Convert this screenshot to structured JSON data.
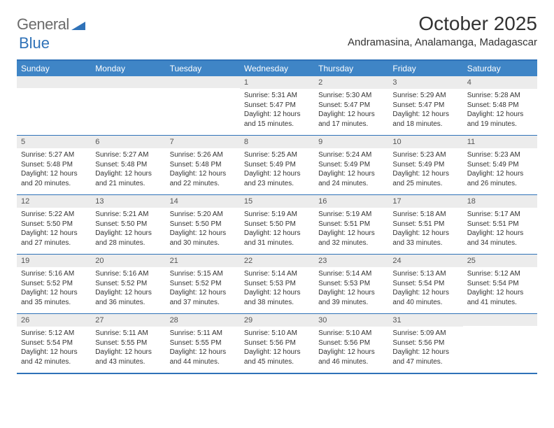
{
  "logo": {
    "text1": "General",
    "text2": "Blue"
  },
  "title": "October 2025",
  "location": "Andramasina, Analamanga, Madagascar",
  "colors": {
    "header_bg": "#3f85c6",
    "border": "#2f72b8",
    "daynum_bg": "#ececec",
    "text": "#333333",
    "header_text": "#ffffff"
  },
  "day_names": [
    "Sunday",
    "Monday",
    "Tuesday",
    "Wednesday",
    "Thursday",
    "Friday",
    "Saturday"
  ],
  "weeks": [
    [
      null,
      null,
      null,
      {
        "n": "1",
        "sr": "5:31 AM",
        "ss": "5:47 PM",
        "dl": "12 hours and 15 minutes."
      },
      {
        "n": "2",
        "sr": "5:30 AM",
        "ss": "5:47 PM",
        "dl": "12 hours and 17 minutes."
      },
      {
        "n": "3",
        "sr": "5:29 AM",
        "ss": "5:47 PM",
        "dl": "12 hours and 18 minutes."
      },
      {
        "n": "4",
        "sr": "5:28 AM",
        "ss": "5:48 PM",
        "dl": "12 hours and 19 minutes."
      }
    ],
    [
      {
        "n": "5",
        "sr": "5:27 AM",
        "ss": "5:48 PM",
        "dl": "12 hours and 20 minutes."
      },
      {
        "n": "6",
        "sr": "5:27 AM",
        "ss": "5:48 PM",
        "dl": "12 hours and 21 minutes."
      },
      {
        "n": "7",
        "sr": "5:26 AM",
        "ss": "5:48 PM",
        "dl": "12 hours and 22 minutes."
      },
      {
        "n": "8",
        "sr": "5:25 AM",
        "ss": "5:49 PM",
        "dl": "12 hours and 23 minutes."
      },
      {
        "n": "9",
        "sr": "5:24 AM",
        "ss": "5:49 PM",
        "dl": "12 hours and 24 minutes."
      },
      {
        "n": "10",
        "sr": "5:23 AM",
        "ss": "5:49 PM",
        "dl": "12 hours and 25 minutes."
      },
      {
        "n": "11",
        "sr": "5:23 AM",
        "ss": "5:49 PM",
        "dl": "12 hours and 26 minutes."
      }
    ],
    [
      {
        "n": "12",
        "sr": "5:22 AM",
        "ss": "5:50 PM",
        "dl": "12 hours and 27 minutes."
      },
      {
        "n": "13",
        "sr": "5:21 AM",
        "ss": "5:50 PM",
        "dl": "12 hours and 28 minutes."
      },
      {
        "n": "14",
        "sr": "5:20 AM",
        "ss": "5:50 PM",
        "dl": "12 hours and 30 minutes."
      },
      {
        "n": "15",
        "sr": "5:19 AM",
        "ss": "5:50 PM",
        "dl": "12 hours and 31 minutes."
      },
      {
        "n": "16",
        "sr": "5:19 AM",
        "ss": "5:51 PM",
        "dl": "12 hours and 32 minutes."
      },
      {
        "n": "17",
        "sr": "5:18 AM",
        "ss": "5:51 PM",
        "dl": "12 hours and 33 minutes."
      },
      {
        "n": "18",
        "sr": "5:17 AM",
        "ss": "5:51 PM",
        "dl": "12 hours and 34 minutes."
      }
    ],
    [
      {
        "n": "19",
        "sr": "5:16 AM",
        "ss": "5:52 PM",
        "dl": "12 hours and 35 minutes."
      },
      {
        "n": "20",
        "sr": "5:16 AM",
        "ss": "5:52 PM",
        "dl": "12 hours and 36 minutes."
      },
      {
        "n": "21",
        "sr": "5:15 AM",
        "ss": "5:52 PM",
        "dl": "12 hours and 37 minutes."
      },
      {
        "n": "22",
        "sr": "5:14 AM",
        "ss": "5:53 PM",
        "dl": "12 hours and 38 minutes."
      },
      {
        "n": "23",
        "sr": "5:14 AM",
        "ss": "5:53 PM",
        "dl": "12 hours and 39 minutes."
      },
      {
        "n": "24",
        "sr": "5:13 AM",
        "ss": "5:54 PM",
        "dl": "12 hours and 40 minutes."
      },
      {
        "n": "25",
        "sr": "5:12 AM",
        "ss": "5:54 PM",
        "dl": "12 hours and 41 minutes."
      }
    ],
    [
      {
        "n": "26",
        "sr": "5:12 AM",
        "ss": "5:54 PM",
        "dl": "12 hours and 42 minutes."
      },
      {
        "n": "27",
        "sr": "5:11 AM",
        "ss": "5:55 PM",
        "dl": "12 hours and 43 minutes."
      },
      {
        "n": "28",
        "sr": "5:11 AM",
        "ss": "5:55 PM",
        "dl": "12 hours and 44 minutes."
      },
      {
        "n": "29",
        "sr": "5:10 AM",
        "ss": "5:56 PM",
        "dl": "12 hours and 45 minutes."
      },
      {
        "n": "30",
        "sr": "5:10 AM",
        "ss": "5:56 PM",
        "dl": "12 hours and 46 minutes."
      },
      {
        "n": "31",
        "sr": "5:09 AM",
        "ss": "5:56 PM",
        "dl": "12 hours and 47 minutes."
      },
      null
    ]
  ],
  "labels": {
    "sunrise": "Sunrise:",
    "sunset": "Sunset:",
    "daylight": "Daylight:"
  }
}
